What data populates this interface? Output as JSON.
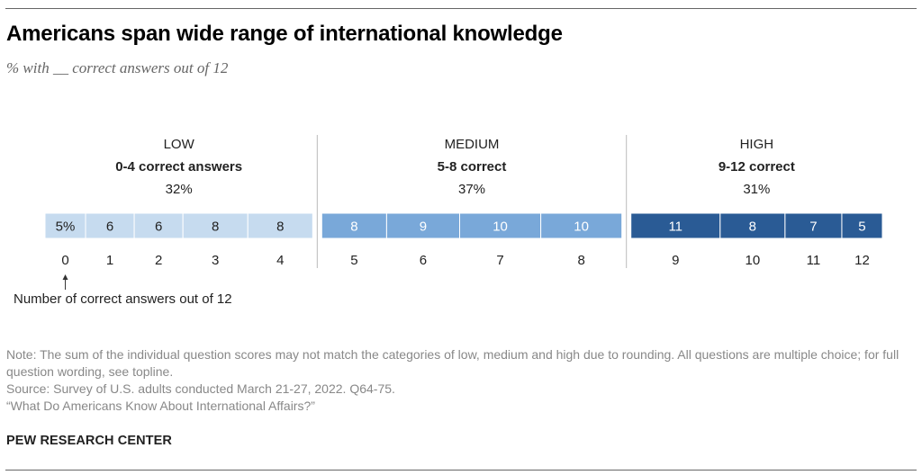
{
  "title": "Americans span wide range of international knowledge",
  "subtitle": "% with __ correct answers out of 12",
  "chart_data": {
    "type": "bar",
    "orientation": "horizontal-stacked",
    "title": "Americans span wide range of international knowledge",
    "subtitle": "% with __ correct answers out of 12",
    "categories": [
      "0",
      "1",
      "2",
      "3",
      "4",
      "5",
      "6",
      "7",
      "8",
      "9",
      "10",
      "11",
      "12"
    ],
    "values": [
      5,
      6,
      6,
      8,
      8,
      8,
      9,
      10,
      10,
      11,
      8,
      7,
      5
    ],
    "value_labels": [
      "5%",
      "6",
      "6",
      "8",
      "8",
      "8",
      "9",
      "10",
      "10",
      "11",
      "8",
      "7",
      "5"
    ],
    "groups": [
      {
        "name": "LOW",
        "range_label": "0-4 correct answers",
        "percent_label": "32%",
        "color": "#c6dbef",
        "members": [
          0,
          1,
          2,
          3,
          4
        ]
      },
      {
        "name": "MEDIUM",
        "range_label": "5-8 correct",
        "percent_label": "37%",
        "color": "#79a8d9",
        "members": [
          5,
          6,
          7,
          8
        ]
      },
      {
        "name": "HIGH",
        "range_label": "9-12 correct",
        "percent_label": "31%",
        "color": "#2a5b95",
        "members": [
          9,
          10,
          11,
          12
        ]
      }
    ],
    "xlabel": "Number of correct answers out of 12",
    "ylabel": ""
  },
  "notes": {
    "note": "Note: The sum of the individual question scores may not match the categories of low, medium and high due to rounding. All questions are multiple choice; for full question wording, see topline.",
    "source": "Source: Survey of U.S. adults conducted March 21-27, 2022. Q64-75.",
    "report": "“What Do Americans Know About International Affairs?”"
  },
  "brand": "PEW RESEARCH CENTER"
}
